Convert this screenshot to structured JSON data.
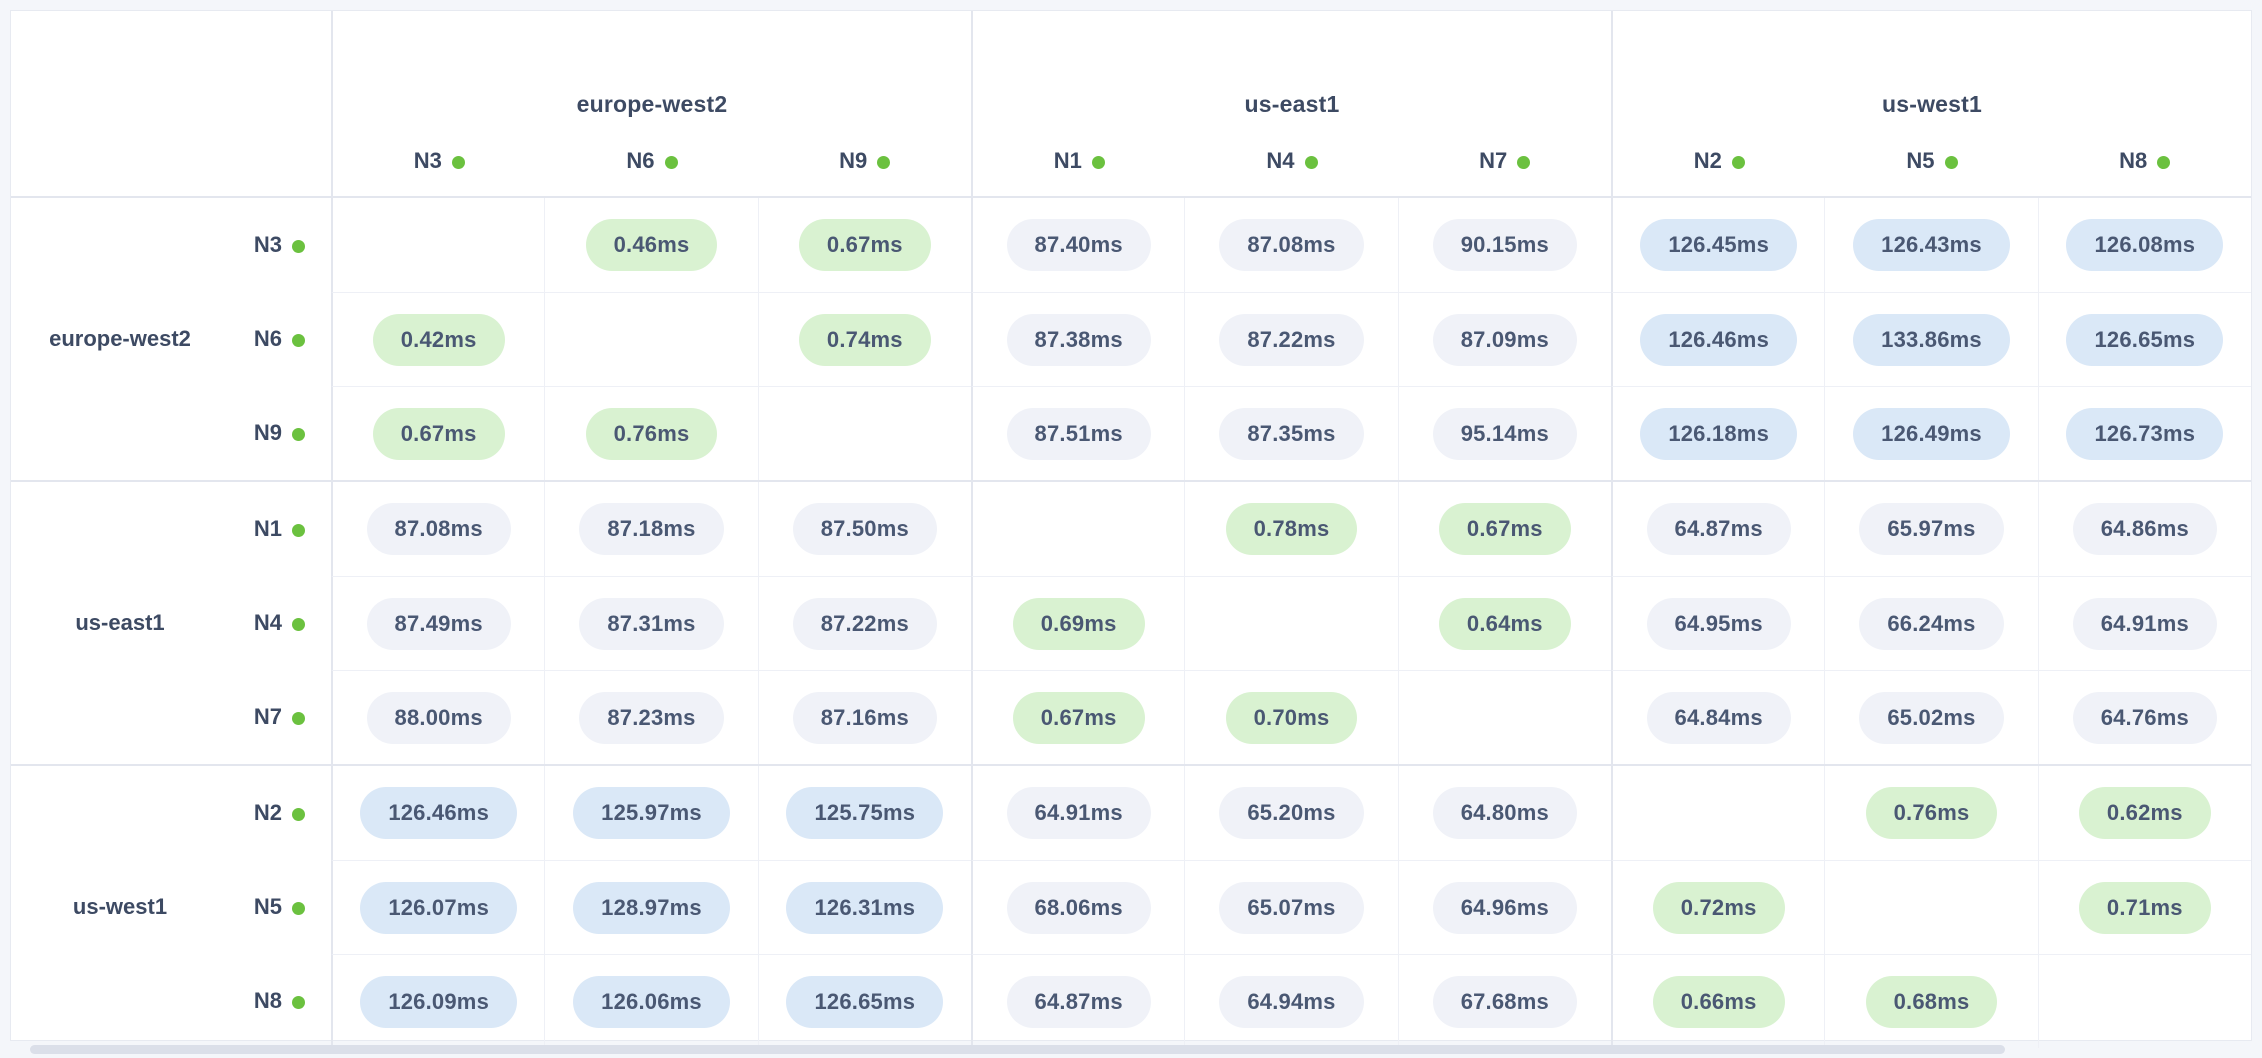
{
  "unit_suffix": "ms",
  "regions": [
    {
      "name": "europe-west2",
      "nodes": [
        "N3",
        "N6",
        "N9"
      ]
    },
    {
      "name": "us-east1",
      "nodes": [
        "N1",
        "N4",
        "N7"
      ]
    },
    {
      "name": "us-west1",
      "nodes": [
        "N2",
        "N5",
        "N8"
      ]
    }
  ],
  "latency_matrix": {
    "row_order": [
      "N3",
      "N6",
      "N9",
      "N1",
      "N4",
      "N7",
      "N2",
      "N5",
      "N8"
    ],
    "col_order": [
      "N3",
      "N6",
      "N9",
      "N1",
      "N4",
      "N7",
      "N2",
      "N5",
      "N8"
    ],
    "values": [
      [
        null,
        0.46,
        0.67,
        87.4,
        87.08,
        90.15,
        126.45,
        126.43,
        126.08
      ],
      [
        0.42,
        null,
        0.74,
        87.38,
        87.22,
        87.09,
        126.46,
        133.86,
        126.65
      ],
      [
        0.67,
        0.76,
        null,
        87.51,
        87.35,
        95.14,
        126.18,
        126.49,
        126.73
      ],
      [
        87.08,
        87.18,
        87.5,
        null,
        0.78,
        0.67,
        64.87,
        65.97,
        64.86
      ],
      [
        87.49,
        87.31,
        87.22,
        0.69,
        null,
        0.64,
        64.95,
        66.24,
        64.91
      ],
      [
        88.0,
        87.23,
        87.16,
        0.67,
        0.7,
        null,
        64.84,
        65.02,
        64.76
      ],
      [
        126.46,
        125.97,
        125.75,
        64.91,
        65.2,
        64.8,
        null,
        0.76,
        0.62
      ],
      [
        126.07,
        128.97,
        126.31,
        68.06,
        65.07,
        64.96,
        0.72,
        null,
        0.71
      ],
      [
        126.09,
        126.06,
        126.65,
        64.87,
        64.94,
        67.68,
        0.66,
        0.68,
        null
      ]
    ],
    "pill_rules": {
      "green_below": 10,
      "blue_at_or_above": 100
    }
  },
  "colors": {
    "pill_green_bg": "#d9f2d1",
    "pill_blue_bg": "#dae8f7",
    "pill_gray_bg": "#f0f2f8",
    "pill_text": "#4a5873",
    "label_text": "#3d4a63",
    "node_status_dot": "#6bc13f",
    "grid_line_soft": "#eef0f6",
    "grid_line_strong": "#e3e6ee",
    "page_background": "#f4f6fa"
  }
}
